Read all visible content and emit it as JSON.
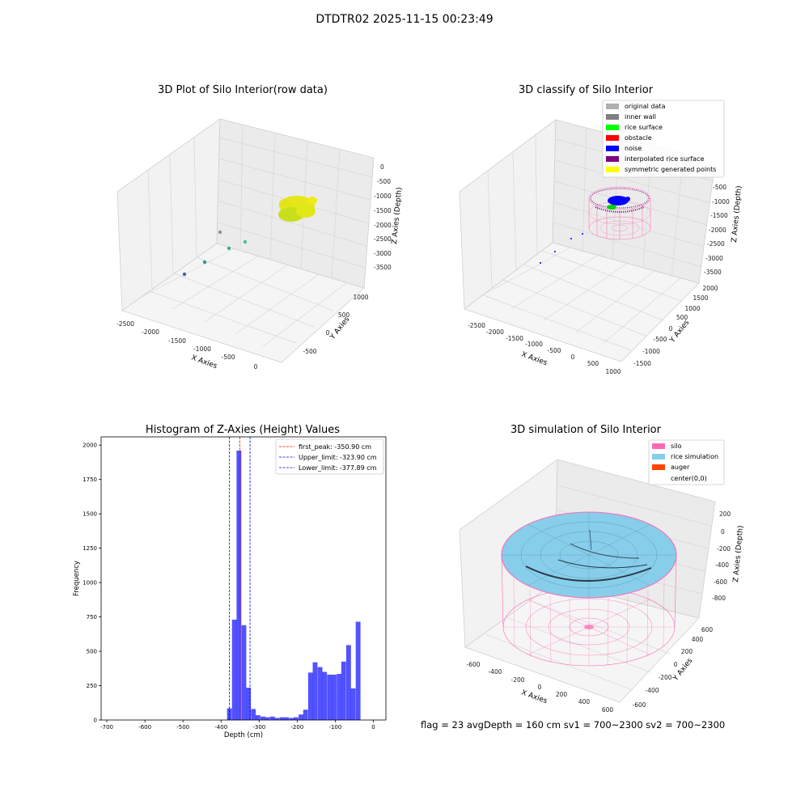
{
  "figure": {
    "title": "DTDTR02 2025-11-15 00:23:49",
    "footer": "flag = 23  avgDepth = 160 cm  sv1 = 700~2300  sv2 = 700~2300"
  },
  "panels": {
    "raw": {
      "title": "3D Plot of Silo Interior(row data)",
      "x_label": "X Axies",
      "y_label": "Y Axies",
      "z_label": "Z Axies (Depth)",
      "x_ticks": [
        "-2500",
        "-2000",
        "-1500",
        "-1000",
        "-500",
        "0"
      ],
      "y_ticks": [
        "-500",
        "0",
        "500",
        "1000"
      ],
      "z_ticks": [
        "0",
        "-500",
        "-1000",
        "-1500",
        "-2000",
        "-2500",
        "-3000",
        "-3500"
      ]
    },
    "classify": {
      "title": "3D classify of Silo Interior",
      "x_label": "X Axies",
      "y_label": "Y Axies",
      "z_label": "Z Axies (Depth)",
      "x_ticks": [
        "-2500",
        "-2000",
        "-1500",
        "-1000",
        "-500",
        "0",
        "500",
        "1000"
      ],
      "y_ticks": [
        "-1500",
        "-1000",
        "-500",
        "0",
        "500",
        "1000",
        "1500",
        "2000"
      ],
      "z_ticks": [
        "-500",
        "-1000",
        "-1500",
        "-2000",
        "-2500",
        "-3000",
        "-3500"
      ],
      "legend": [
        {
          "label": "original data",
          "color": "#b0b0b0"
        },
        {
          "label": "inner wall",
          "color": "#808080"
        },
        {
          "label": "rice surface",
          "color": "#00ff00"
        },
        {
          "label": "obstacle",
          "color": "#ff0000"
        },
        {
          "label": "noise",
          "color": "#0000ff"
        },
        {
          "label": "interpolated rice surface",
          "color": "#800080"
        },
        {
          "label": "symmetric generated points",
          "color": "#ffff00"
        }
      ]
    },
    "simulation": {
      "title": "3D simulation of Silo Interior",
      "x_label": "X Axies",
      "y_label": "Y Axies",
      "z_label": "Z Axies (Depth)",
      "x_ticks": [
        "-600",
        "-400",
        "-200",
        "0",
        "200",
        "400",
        "600"
      ],
      "y_ticks": [
        "-600",
        "-400",
        "-200",
        "0",
        "200",
        "400",
        "600"
      ],
      "z_ticks": [
        "200",
        "0",
        "-200",
        "-400",
        "-600",
        "-800"
      ],
      "legend": [
        {
          "label": "silo",
          "color": "#ff69b4"
        },
        {
          "label": "rice simulation",
          "color": "#87ceeb"
        },
        {
          "label": "auger",
          "color": "#ff4500"
        },
        {
          "label": "center(0,0)",
          "color": ""
        }
      ]
    }
  },
  "chart_data": {
    "type": "bar",
    "title": "Histogram of Z-Axies (Height) Values",
    "xlabel": "Depth (cm)",
    "ylabel": "Frequency",
    "xlim": [
      -715,
      33
    ],
    "ylim": [
      0,
      2060
    ],
    "x_ticks": [
      -700,
      -600,
      -500,
      -400,
      -300,
      -200,
      -100,
      0
    ],
    "y_ticks": [
      0,
      250,
      500,
      750,
      1000,
      1250,
      1500,
      1750,
      2000
    ],
    "bar_color": "#0000ff",
    "bar_width": 12.5,
    "bins": [
      {
        "x": -378,
        "value": 85
      },
      {
        "x": -365,
        "value": 730
      },
      {
        "x": -353,
        "value": 1960
      },
      {
        "x": -340,
        "value": 690
      },
      {
        "x": -328,
        "value": 235
      },
      {
        "x": -315,
        "value": 80
      },
      {
        "x": -303,
        "value": 35
      },
      {
        "x": -290,
        "value": 25
      },
      {
        "x": -278,
        "value": 20
      },
      {
        "x": -265,
        "value": 25
      },
      {
        "x": -253,
        "value": 15
      },
      {
        "x": -240,
        "value": 20
      },
      {
        "x": -228,
        "value": 20
      },
      {
        "x": -215,
        "value": 15
      },
      {
        "x": -203,
        "value": 20
      },
      {
        "x": -190,
        "value": 40
      },
      {
        "x": -178,
        "value": 75
      },
      {
        "x": -165,
        "value": 345
      },
      {
        "x": -153,
        "value": 420
      },
      {
        "x": -140,
        "value": 385
      },
      {
        "x": -128,
        "value": 350
      },
      {
        "x": -115,
        "value": 330
      },
      {
        "x": -103,
        "value": 330
      },
      {
        "x": -90,
        "value": 335
      },
      {
        "x": -78,
        "value": 425
      },
      {
        "x": -65,
        "value": 545
      },
      {
        "x": -53,
        "value": 230
      },
      {
        "x": -40,
        "value": 715
      }
    ],
    "reference_lines": [
      {
        "label": "first_peak: -350.90 cm",
        "x": -350.9,
        "color": "#ff0000"
      },
      {
        "label": "Upper_limit: -323.90 cm",
        "x": -323.9,
        "color": "#0000ff"
      },
      {
        "label": "Lower_limit: -377.89 cm",
        "x": -377.89,
        "color": "#0000ff"
      }
    ],
    "legend_position": "top-right"
  }
}
